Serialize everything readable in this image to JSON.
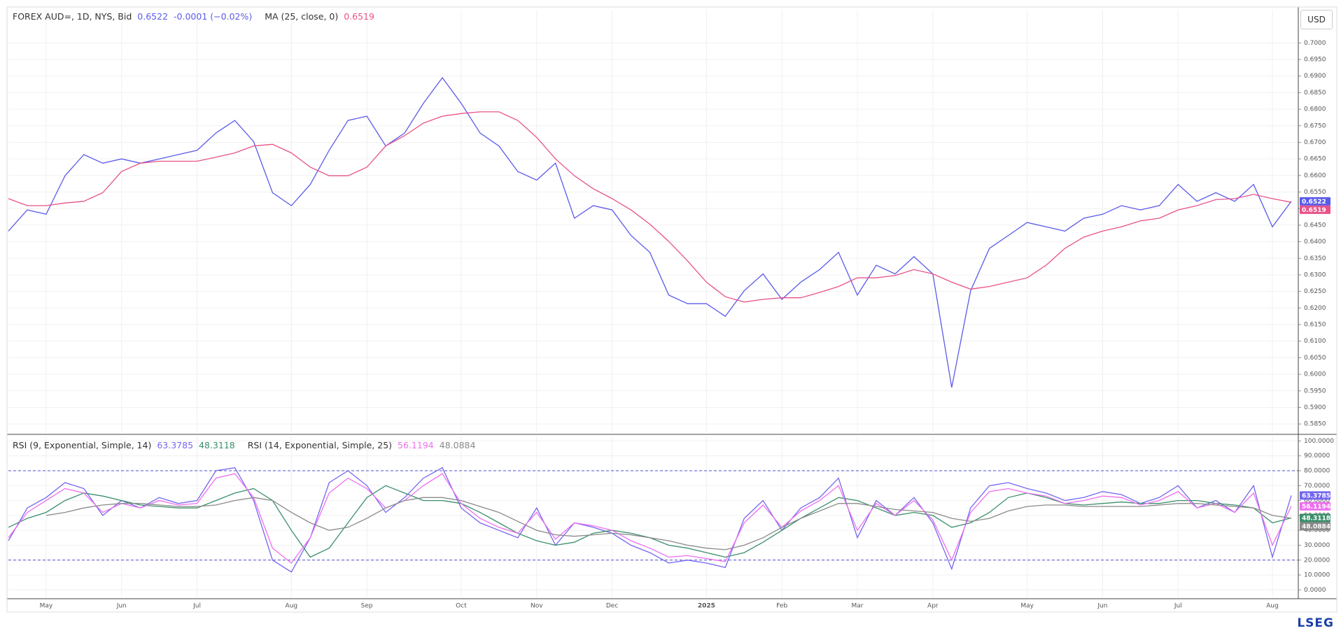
{
  "brand": "LSEG",
  "chart_data": [
    {
      "type": "line",
      "unit": "USD",
      "change": "-0.0001 (−0.02%)",
      "categories": [
        null,
        null,
        "May",
        null,
        null,
        null,
        "Jun",
        null,
        null,
        null,
        "Jul",
        null,
        null,
        null,
        null,
        "Aug",
        null,
        null,
        null,
        "Sep",
        null,
        null,
        null,
        null,
        "Oct",
        null,
        null,
        null,
        "Nov",
        null,
        null,
        null,
        "Dec",
        null,
        null,
        null,
        null,
        "2025",
        null,
        null,
        null,
        "Feb",
        null,
        null,
        null,
        "Mar",
        null,
        null,
        null,
        "Apr",
        null,
        null,
        null,
        null,
        "May",
        null,
        null,
        null,
        "Jun",
        null,
        null,
        null,
        "Jul",
        null,
        null,
        null,
        null,
        "Aug",
        null
      ],
      "series": [
        {
          "name": "FOREX AUD=, 1D, NYS, Bid",
          "color": "#5b5bea",
          "values": [
            0.6432,
            0.6496,
            0.6483,
            0.6599,
            0.6663,
            0.6637,
            0.665,
            0.6637,
            0.665,
            0.6663,
            0.6676,
            0.6728,
            0.6766,
            0.6702,
            0.6548,
            0.6509,
            0.6573,
            0.6676,
            0.6766,
            0.6779,
            0.6689,
            0.6728,
            0.6818,
            0.6895,
            0.6818,
            0.6728,
            0.6689,
            0.6612,
            0.6586,
            0.6637,
            0.6471,
            0.6509,
            0.6496,
            0.6419,
            0.6368,
            0.6239,
            0.6213,
            0.6213,
            0.6175,
            0.6252,
            0.6303,
            0.6226,
            0.6278,
            0.6316,
            0.6368,
            0.6239,
            0.6329,
            0.6303,
            0.6355,
            0.6303,
            0.596,
            0.6252,
            0.638,
            0.6419,
            0.6458,
            0.6445,
            0.6432,
            0.6471,
            0.6483,
            0.6509,
            0.6496,
            0.6509,
            0.6573,
            0.6522,
            0.6548,
            0.6522,
            0.6573,
            0.6445,
            0.6522
          ]
        },
        {
          "name": "MA (25, close, 0)",
          "color": "#e8528a",
          "values": [
            0.653,
            0.6509,
            0.6509,
            0.6517,
            0.6522,
            0.6548,
            0.6612,
            0.6637,
            0.6643,
            0.6643,
            0.6643,
            0.6655,
            0.6668,
            0.6689,
            0.6694,
            0.6668,
            0.6625,
            0.6599,
            0.6599,
            0.6625,
            0.6689,
            0.672,
            0.6758,
            0.6779,
            0.6787,
            0.6792,
            0.6792,
            0.6766,
            0.6715,
            0.665,
            0.6599,
            0.656,
            0.653,
            0.6496,
            0.6453,
            0.6401,
            0.6342,
            0.6278,
            0.6234,
            0.6218,
            0.6226,
            0.6231,
            0.6231,
            0.6247,
            0.6265,
            0.6291,
            0.6291,
            0.6298,
            0.6316,
            0.6303,
            0.6278,
            0.6257,
            0.6265,
            0.6278,
            0.6291,
            0.6329,
            0.638,
            0.6414,
            0.6432,
            0.6445,
            0.6463,
            0.6471,
            0.6496,
            0.6509,
            0.6527,
            0.653,
            0.6543,
            0.653,
            0.6519
          ]
        }
      ],
      "ylim": [
        0.5825,
        0.71
      ],
      "yticks": [
        {
          "value": 0.585,
          "label": "0.5850"
        },
        {
          "value": 0.59,
          "label": "0.5900"
        },
        {
          "value": 0.595,
          "label": "0.5950"
        },
        {
          "value": 0.6,
          "label": "0.6000"
        },
        {
          "value": 0.605,
          "label": "0.6050"
        },
        {
          "value": 0.61,
          "label": "0.6100"
        },
        {
          "value": 0.615,
          "label": "0.6150"
        },
        {
          "value": 0.62,
          "label": "0.6200"
        },
        {
          "value": 0.625,
          "label": "0.6250"
        },
        {
          "value": 0.63,
          "label": "0.6300"
        },
        {
          "value": 0.635,
          "label": "0.6350"
        },
        {
          "value": 0.64,
          "label": "0.6400"
        },
        {
          "value": 0.645,
          "label": "0.6450"
        },
        {
          "value": 0.65,
          "label": "0.6500"
        },
        {
          "value": 0.655,
          "label": "0.6550"
        },
        {
          "value": 0.66,
          "label": "0.6600"
        },
        {
          "value": 0.665,
          "label": "0.6650"
        },
        {
          "value": 0.67,
          "label": "0.6700"
        },
        {
          "value": 0.675,
          "label": "0.6750"
        },
        {
          "value": 0.68,
          "label": "0.6800"
        },
        {
          "value": 0.685,
          "label": "0.6850"
        },
        {
          "value": 0.69,
          "label": "0.6900"
        },
        {
          "value": 0.695,
          "label": "0.6950"
        },
        {
          "value": 0.7,
          "label": "0.7000"
        }
      ],
      "grid": true
    },
    {
      "type": "line",
      "series": [
        {
          "name": "RSI (9, Exponential, Simple, 14)",
          "color": "#7466f0",
          "values": [
            33,
            55,
            62,
            72,
            68,
            50,
            60,
            55,
            62,
            58,
            60,
            80,
            82,
            60,
            20,
            12,
            35,
            72,
            80,
            70,
            52,
            62,
            75,
            82,
            55,
            45,
            40,
            35,
            55,
            30,
            45,
            42,
            38,
            30,
            25,
            18,
            20,
            18,
            15,
            48,
            60,
            40,
            55,
            62,
            75,
            35,
            60,
            50,
            62,
            45,
            14,
            55,
            70,
            72,
            68,
            65,
            60,
            62,
            66,
            64,
            58,
            62,
            70,
            55,
            60,
            52,
            70,
            22,
            63.3785
          ]
        },
        {
          "color": "#3b8f6b",
          "values": [
            42,
            48,
            52,
            60,
            65,
            63,
            60,
            57,
            56,
            55,
            55,
            60,
            65,
            68,
            60,
            40,
            22,
            28,
            45,
            62,
            70,
            65,
            60,
            60,
            58,
            52,
            45,
            38,
            33,
            30,
            32,
            38,
            40,
            38,
            35,
            30,
            28,
            25,
            22,
            25,
            32,
            40,
            48,
            55,
            62,
            60,
            55,
            50,
            52,
            50,
            42,
            45,
            52,
            62,
            65,
            62,
            58,
            57,
            58,
            59,
            58,
            58,
            60,
            60,
            58,
            57,
            55,
            45,
            48.3118
          ]
        },
        {
          "name": "RSI (14, Exponential, Simple, 25)",
          "color": "#ee6fee",
          "values": [
            35,
            52,
            60,
            68,
            65,
            52,
            58,
            55,
            60,
            57,
            58,
            75,
            78,
            62,
            28,
            18,
            35,
            65,
            75,
            68,
            55,
            60,
            70,
            78,
            58,
            48,
            42,
            38,
            52,
            34,
            45,
            43,
            40,
            33,
            28,
            22,
            23,
            21,
            19,
            45,
            57,
            42,
            53,
            60,
            70,
            40,
            58,
            50,
            60,
            47,
            20,
            52,
            66,
            68,
            65,
            63,
            58,
            60,
            63,
            62,
            57,
            60,
            66,
            55,
            58,
            52,
            65,
            30,
            56.1194
          ]
        },
        {
          "color": "#8a8a8a",
          "values": [
            null,
            null,
            50,
            52,
            55,
            57,
            58,
            58,
            57,
            56,
            56,
            57,
            60,
            62,
            60,
            52,
            45,
            40,
            42,
            48,
            55,
            60,
            62,
            62,
            60,
            56,
            52,
            46,
            40,
            37,
            36,
            37,
            38,
            37,
            35,
            33,
            30,
            28,
            27,
            30,
            35,
            42,
            48,
            53,
            58,
            58,
            56,
            54,
            53,
            52,
            48,
            46,
            48,
            53,
            56,
            57,
            57,
            56,
            56,
            56,
            56,
            57,
            58,
            58,
            57,
            56,
            55,
            50,
            48.0884
          ]
        }
      ],
      "reference_lines": [
        80,
        20
      ],
      "reference_color": "#4f4fd6",
      "ylim": [
        -5,
        103
      ],
      "yticks": [
        {
          "value": 0,
          "label": "0.0000"
        },
        {
          "value": 10,
          "label": "10.0000"
        },
        {
          "value": 20,
          "label": "20.0000"
        },
        {
          "value": 30,
          "label": "30.0000"
        },
        {
          "value": 40,
          "label": "40.0000"
        },
        {
          "value": 50,
          "label": "50.0000"
        },
        {
          "value": 60,
          "label": "60.0000"
        },
        {
          "value": 70,
          "label": "70.0000"
        },
        {
          "value": 80,
          "label": "80.0000"
        },
        {
          "value": 90,
          "label": "90.0000"
        },
        {
          "value": 100,
          "label": "100.0000"
        }
      ],
      "grid": true
    }
  ]
}
